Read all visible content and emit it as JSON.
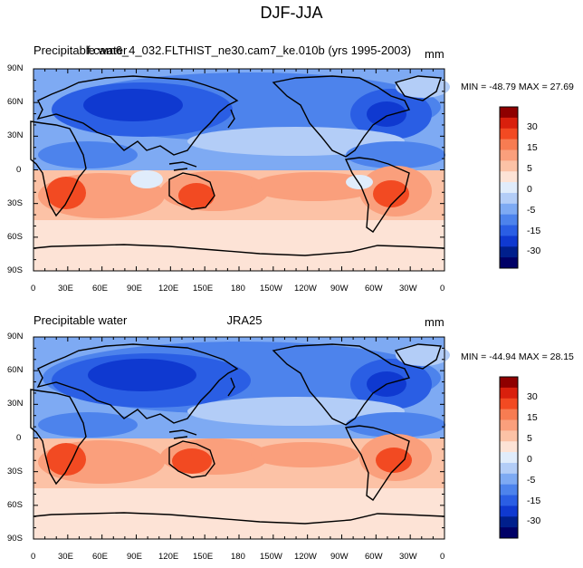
{
  "page": {
    "title": "DJF-JJA"
  },
  "map_colors": {
    "land_outline": "#000000",
    "ocean_base": "#fde3d6"
  },
  "colorbar": {
    "labels": [
      "30",
      "15",
      "5",
      "0",
      "-5",
      "-15",
      "-30"
    ],
    "colors": [
      "#8f0000",
      "#d9200d",
      "#f24a22",
      "#f77c52",
      "#fa9f7c",
      "#fcc2a6",
      "#fde3d6",
      "#e0ecfb",
      "#b3cdf7",
      "#7eaaf3",
      "#4d83ec",
      "#2a5ee4",
      "#0f39d0",
      "#001f8c",
      "#000066"
    ]
  },
  "axes": {
    "lat_labels": [
      "90N",
      "60N",
      "30N",
      "0",
      "30S",
      "60S",
      "90S"
    ],
    "lon_labels": [
      "0",
      "30E",
      "60E",
      "90E",
      "120E",
      "150E",
      "180",
      "150W",
      "120W",
      "90W",
      "60W",
      "30W",
      "0"
    ]
  },
  "panels": [
    {
      "left_title": "Precipitable water",
      "center_title": "f.cam6_4_032.FLTHIST_ne30.cam7_ke.010b (yrs 1995-2003)",
      "units": "mm",
      "min_max": "MIN = -48.79 MAX =  27.69"
    },
    {
      "left_title": "Precipitable water",
      "center_title": "JRA25",
      "units": "mm",
      "min_max": "MIN = -44.94 MAX =  28.15"
    }
  ]
}
